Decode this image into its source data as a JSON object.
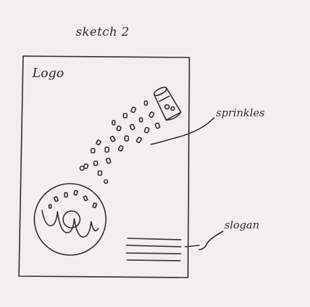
{
  "sketch": {
    "title": "sketch 2",
    "logo_text": "Logo",
    "annotations": {
      "sprinkles": "sprinkles",
      "slogan": "slogan"
    }
  },
  "elements": {
    "shaker_icon": "salt-shaker-icon",
    "donut_icon": "donut-icon",
    "slogan_lines_count": 4
  }
}
